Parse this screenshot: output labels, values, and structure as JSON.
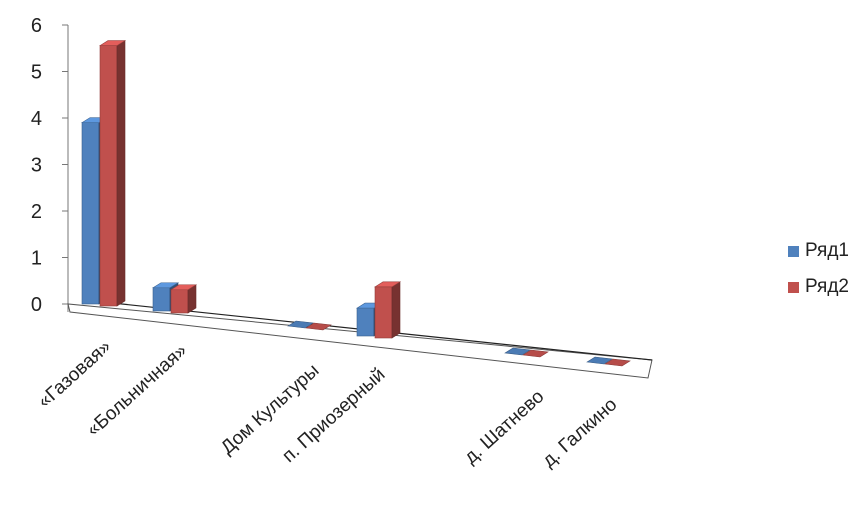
{
  "chart_data": {
    "type": "bar",
    "variant": "3d-clustered-column",
    "categories": [
      "«Газовая»",
      "«Больничная»",
      "Дом Культуры",
      "п. Приозерный",
      "д. Шатнево",
      "д. Галкино"
    ],
    "series": [
      {
        "name": "Ряд1",
        "values": [
          3.9,
          0.5,
          0.0,
          0.6,
          0.0,
          0.0
        ],
        "color": "#4f81bd"
      },
      {
        "name": "Ряд2",
        "values": [
          5.6,
          0.5,
          0.0,
          1.1,
          0.0,
          0.0
        ],
        "color": "#c0504d"
      }
    ],
    "y_ticks": [
      "0",
      "1",
      "2",
      "3",
      "4",
      "5",
      "6"
    ],
    "ylim": [
      0,
      6
    ],
    "grid": false,
    "legend_position": "right"
  }
}
